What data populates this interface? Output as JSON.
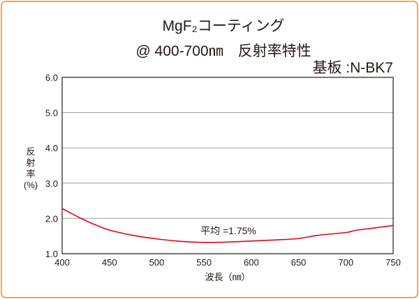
{
  "chart_data": {
    "type": "line",
    "title": "MgF₂コーティング",
    "subtitle": "@ 400-700㎚　反射率特性",
    "substrate": "基板 :N-BK7",
    "xlabel": "波長（㎚）",
    "ylabel": [
      "反",
      "射",
      "率",
      "(%)"
    ],
    "xlim": [
      400,
      750
    ],
    "ylim": [
      1.0,
      6.0
    ],
    "xticks": [
      "400",
      "450",
      "500",
      "550",
      "600",
      "650",
      "700",
      "750"
    ],
    "yticks": [
      "1.0",
      "2.0",
      "3.0",
      "4.0",
      "5.0",
      "6.0"
    ],
    "grid": "horizontal",
    "annotation": "平均 =1.75%",
    "series": [
      {
        "name": "reflectance",
        "color": "#e60012",
        "x": [
          400,
          410,
          420,
          435,
          450,
          475,
          500,
          525,
          550,
          575,
          600,
          625,
          650,
          670,
          700,
          710,
          730,
          750
        ],
        "y": [
          2.28,
          2.14,
          2.0,
          1.82,
          1.67,
          1.52,
          1.42,
          1.35,
          1.32,
          1.33,
          1.36,
          1.39,
          1.43,
          1.52,
          1.6,
          1.66,
          1.73,
          1.8
        ]
      }
    ]
  }
}
